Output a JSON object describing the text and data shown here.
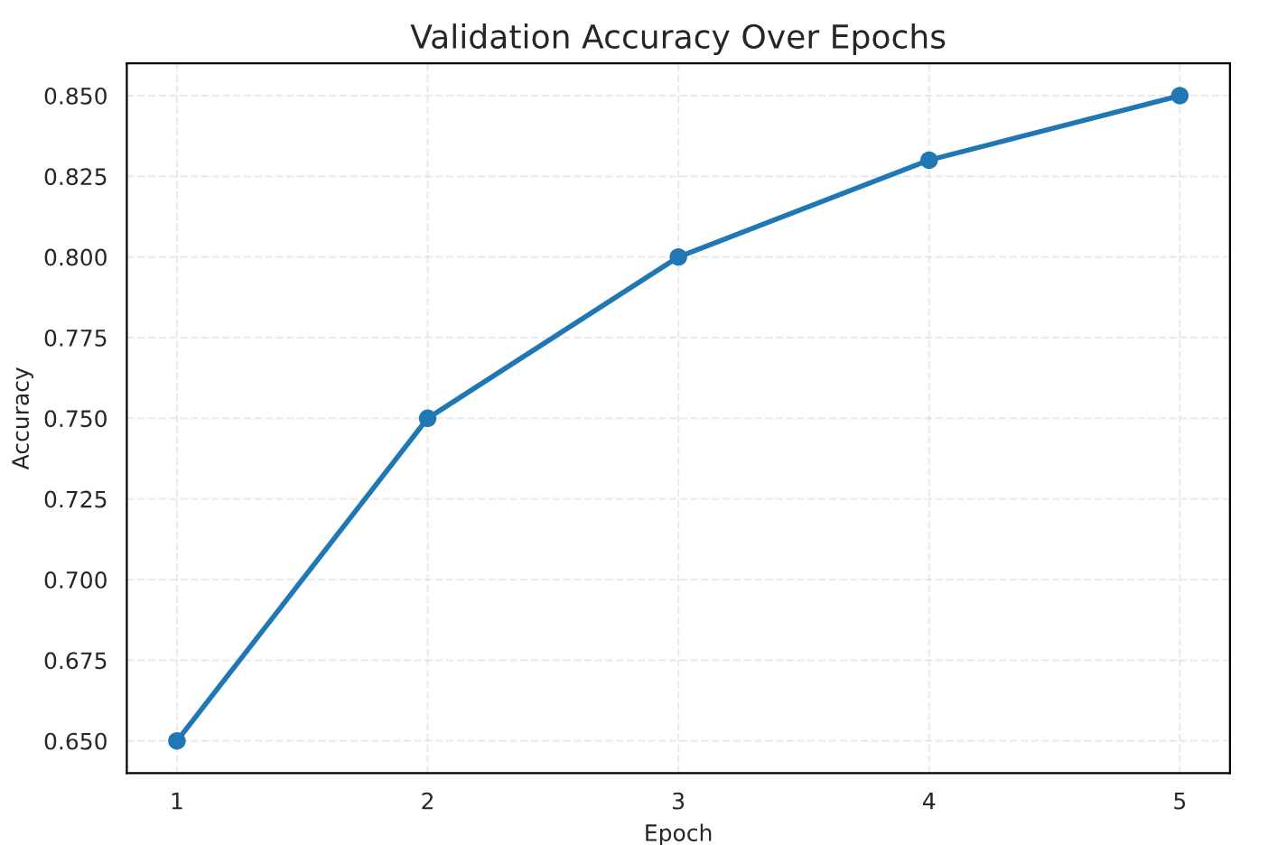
{
  "chart_data": {
    "type": "line",
    "title": "Validation Accuracy Over Epochs",
    "xlabel": "Epoch",
    "ylabel": "Accuracy",
    "x": [
      1,
      2,
      3,
      4,
      5
    ],
    "series": [
      {
        "color": "#1f77b4",
        "values": [
          0.65,
          0.75,
          0.8,
          0.83,
          0.85
        ]
      }
    ],
    "xlim": [
      0.8,
      5.2
    ],
    "xticks": [
      1,
      2,
      3,
      4,
      5
    ],
    "ylim": [
      0.64,
      0.86
    ],
    "yticks": [
      {
        "value": 0.65,
        "label": "0.650"
      },
      {
        "value": 0.675,
        "label": "0.675"
      },
      {
        "value": 0.7,
        "label": "0.700"
      },
      {
        "value": 0.725,
        "label": "0.725"
      },
      {
        "value": 0.75,
        "label": "0.750"
      },
      {
        "value": 0.775,
        "label": "0.775"
      },
      {
        "value": 0.8,
        "label": "0.800"
      },
      {
        "value": 0.825,
        "label": "0.825"
      },
      {
        "value": 0.85,
        "label": "0.850"
      }
    ],
    "grid": true,
    "marker": "circle",
    "line_style": "solid"
  }
}
